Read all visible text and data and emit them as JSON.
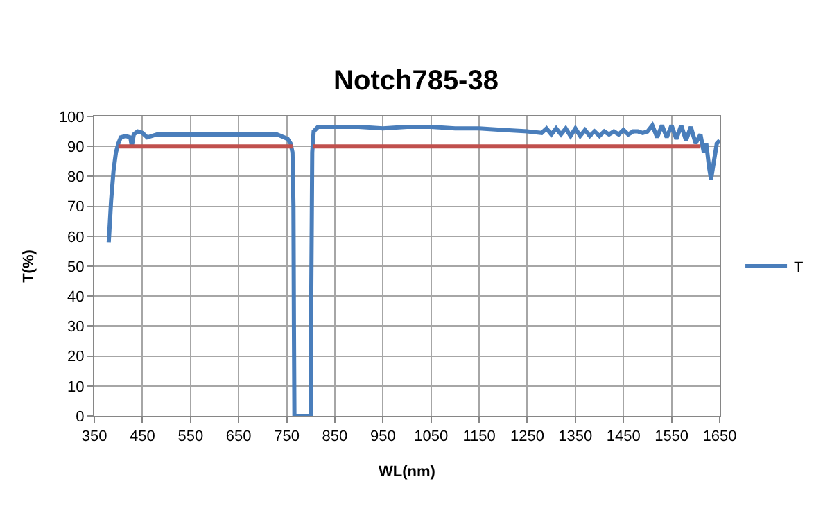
{
  "chart_data": {
    "type": "line",
    "title": "Notch785-38",
    "xlabel": "WL(nm)",
    "ylabel": "T(%)",
    "xlim": [
      350,
      1650
    ],
    "xticks": [
      350,
      450,
      550,
      650,
      750,
      850,
      950,
      1050,
      1150,
      1250,
      1350,
      1450,
      1550,
      1650
    ],
    "ylim": [
      0,
      100
    ],
    "yticks": [
      0,
      10,
      20,
      30,
      40,
      50,
      60,
      70,
      80,
      90,
      100
    ],
    "grid": true,
    "legend": "right",
    "marker": "none",
    "line_style": "solid",
    "series": [
      {
        "name": "T",
        "color": "#4a7ebb",
        "x": [
          380,
          385,
          390,
          395,
          400,
          405,
          415,
          425,
          428,
          432,
          440,
          450,
          460,
          480,
          500,
          550,
          600,
          650,
          700,
          730,
          745,
          752,
          758,
          762,
          764,
          765,
          766,
          800,
          801,
          803,
          806,
          815,
          850,
          900,
          950,
          1000,
          1050,
          1100,
          1150,
          1200,
          1250,
          1280,
          1290,
          1300,
          1310,
          1320,
          1330,
          1340,
          1350,
          1360,
          1370,
          1380,
          1390,
          1400,
          1410,
          1420,
          1430,
          1440,
          1450,
          1460,
          1470,
          1480,
          1490,
          1500,
          1510,
          1520,
          1530,
          1540,
          1550,
          1560,
          1570,
          1580,
          1590,
          1600,
          1610,
          1617,
          1622,
          1628,
          1632,
          1638,
          1644,
          1650
        ],
        "values": [
          58,
          72,
          82,
          88,
          91,
          93,
          93.5,
          93,
          90,
          94,
          95,
          94.5,
          93,
          94,
          94,
          94,
          94,
          94,
          94,
          94,
          93,
          92.5,
          91,
          88,
          70,
          30,
          0,
          0,
          40,
          88,
          95,
          96.5,
          96.5,
          96.5,
          96,
          96.5,
          96.5,
          96,
          96,
          95.5,
          95,
          94.5,
          96,
          94,
          96,
          94,
          96,
          93.5,
          96,
          93.5,
          95.5,
          93.5,
          95,
          93.5,
          95,
          94,
          95,
          94,
          95.5,
          94,
          95,
          95,
          94.5,
          95,
          97,
          93,
          97,
          93,
          97,
          92.5,
          97,
          92,
          96.5,
          91,
          94,
          88,
          91,
          83,
          79,
          85,
          91,
          92
        ]
      },
      {
        "color": "#c0504d",
        "x": [
          400,
          762,
          null,
          805,
          1610
        ],
        "values": [
          90,
          90,
          null,
          90,
          90
        ]
      }
    ]
  }
}
